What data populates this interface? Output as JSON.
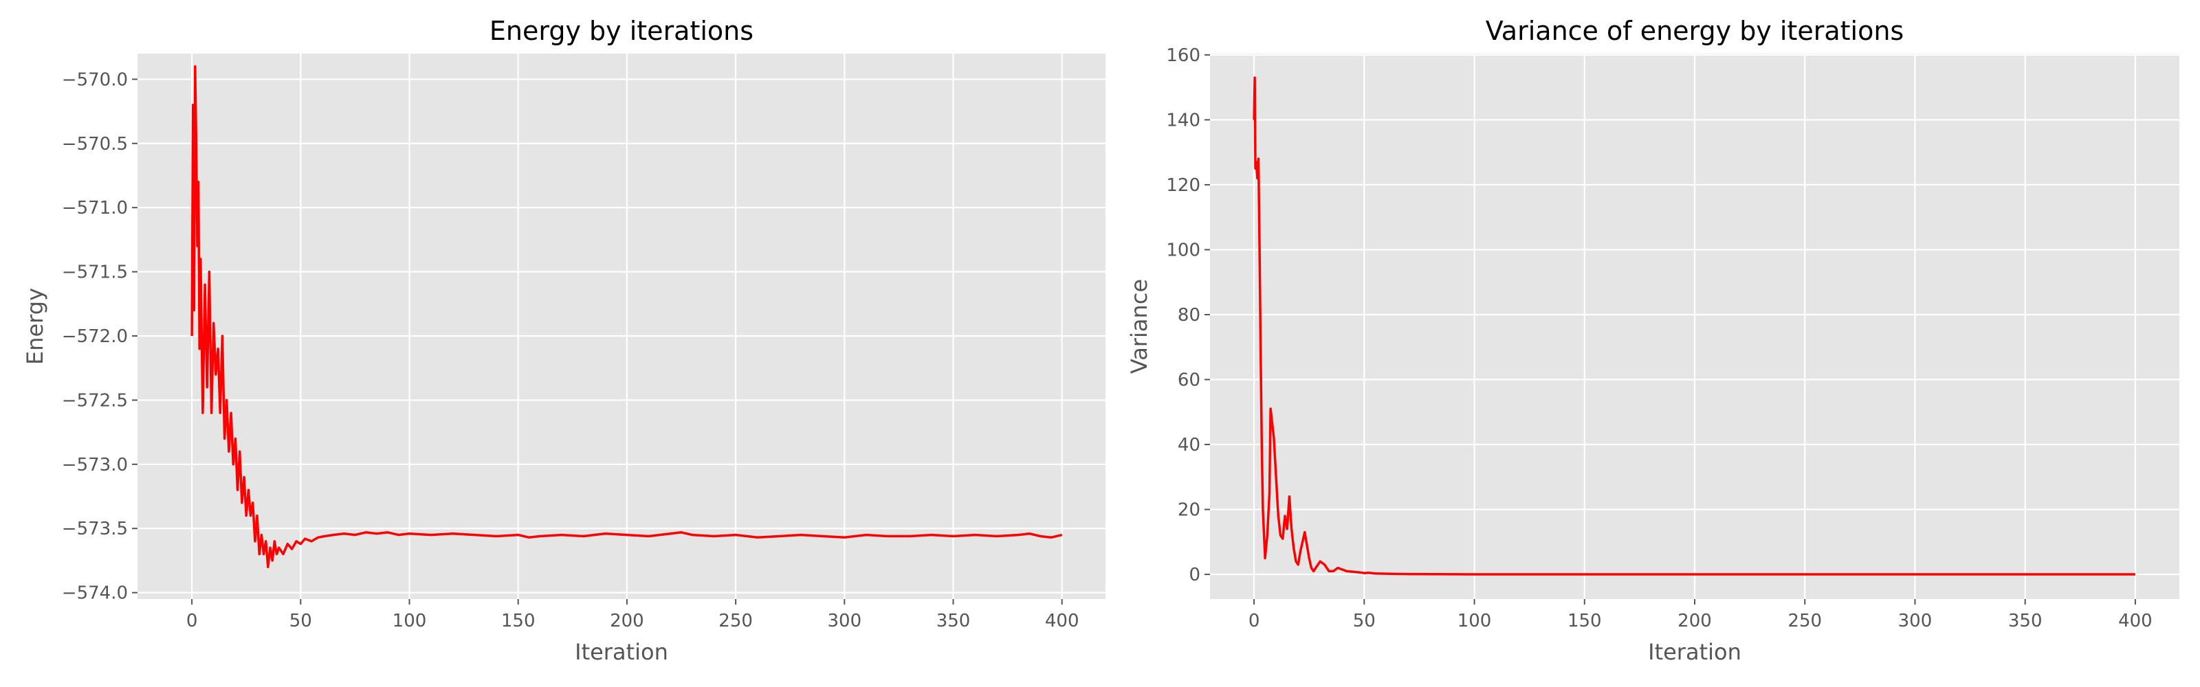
{
  "style": {
    "figure_bg": "#ffffff",
    "axes_bg": "#e5e5e5",
    "grid_color": "#ffffff",
    "tick_color": "#555555",
    "line_color": "#ff0000"
  },
  "chart_data": [
    {
      "type": "line",
      "title": "Energy by iterations",
      "xlabel": "Iteration",
      "ylabel": "Energy",
      "xlim": [
        -25,
        420
      ],
      "ylim": [
        -574.05,
        -569.8
      ],
      "xticks": [
        0,
        50,
        100,
        150,
        200,
        250,
        300,
        350,
        400
      ],
      "yticks": [
        -574.0,
        -573.5,
        -573.0,
        -572.5,
        -572.0,
        -571.5,
        -571.0,
        -570.5,
        -570.0
      ],
      "xtick_labels": [
        "0",
        "50",
        "100",
        "150",
        "200",
        "250",
        "300",
        "350",
        "400"
      ],
      "ytick_labels": [
        "−574.0",
        "−573.5",
        "−573.0",
        "−572.5",
        "−572.0",
        "−571.5",
        "−571.0",
        "−570.5",
        "−570.0"
      ],
      "grid": true,
      "series": [
        {
          "color": "#ff0000",
          "x": [
            0,
            0.5,
            1,
            1.5,
            2,
            2.5,
            3,
            3.5,
            4,
            5,
            6,
            7,
            8,
            9,
            10,
            11,
            12,
            13,
            14,
            15,
            16,
            17,
            18,
            19,
            20,
            21,
            22,
            23,
            24,
            25,
            26,
            27,
            28,
            29,
            30,
            31,
            32,
            33,
            34,
            35,
            36,
            37,
            38,
            39,
            40,
            42,
            44,
            46,
            48,
            50,
            52,
            55,
            58,
            61,
            65,
            70,
            75,
            80,
            85,
            90,
            95,
            100,
            110,
            120,
            130,
            140,
            150,
            155,
            160,
            170,
            180,
            190,
            200,
            210,
            220,
            225,
            230,
            240,
            250,
            260,
            270,
            280,
            290,
            300,
            310,
            320,
            330,
            340,
            350,
            360,
            370,
            380,
            385,
            390,
            395,
            400
          ],
          "y": [
            -572.0,
            -570.2,
            -571.8,
            -569.9,
            -570.5,
            -571.3,
            -570.8,
            -572.1,
            -571.4,
            -572.6,
            -571.6,
            -572.4,
            -571.5,
            -572.6,
            -571.9,
            -572.3,
            -572.1,
            -572.6,
            -572.0,
            -572.8,
            -572.5,
            -572.9,
            -572.6,
            -573.0,
            -572.8,
            -573.2,
            -572.9,
            -573.3,
            -573.1,
            -573.4,
            -573.2,
            -573.4,
            -573.3,
            -573.6,
            -573.4,
            -573.7,
            -573.55,
            -573.7,
            -573.6,
            -573.8,
            -573.65,
            -573.75,
            -573.6,
            -573.7,
            -573.65,
            -573.7,
            -573.62,
            -573.66,
            -573.6,
            -573.62,
            -573.58,
            -573.6,
            -573.57,
            -573.56,
            -573.55,
            -573.54,
            -573.55,
            -573.53,
            -573.54,
            -573.53,
            -573.55,
            -573.54,
            -573.55,
            -573.54,
            -573.55,
            -573.56,
            -573.55,
            -573.57,
            -573.56,
            -573.55,
            -573.56,
            -573.54,
            -573.55,
            -573.56,
            -573.54,
            -573.53,
            -573.55,
            -573.56,
            -573.55,
            -573.57,
            -573.56,
            -573.55,
            -573.56,
            -573.57,
            -573.55,
            -573.56,
            -573.56,
            -573.55,
            -573.56,
            -573.55,
            -573.56,
            -573.55,
            -573.54,
            -573.56,
            -573.57,
            -573.55
          ]
        }
      ]
    },
    {
      "type": "line",
      "title": "Variance of energy by iterations",
      "xlabel": "Iteration",
      "ylabel": "Variance",
      "xlim": [
        -20,
        420
      ],
      "ylim": [
        -7.6,
        160.4
      ],
      "xticks": [
        0,
        50,
        100,
        150,
        200,
        250,
        300,
        350,
        400
      ],
      "yticks": [
        0,
        20,
        40,
        60,
        80,
        100,
        120,
        140,
        160
      ],
      "xtick_labels": [
        "0",
        "50",
        "100",
        "150",
        "200",
        "250",
        "300",
        "350",
        "400"
      ],
      "ytick_labels": [
        "0",
        "20",
        "40",
        "60",
        "80",
        "100",
        "120",
        "140",
        "160"
      ],
      "grid": true,
      "series": [
        {
          "color": "#ff0000",
          "x": [
            0,
            0.3,
            0.6,
            1,
            1.5,
            2,
            2.5,
            3,
            3.5,
            4,
            5,
            6,
            7,
            7.5,
            8,
            9,
            10,
            11,
            12,
            13,
            14,
            15,
            16,
            17,
            18,
            19,
            20,
            21,
            22,
            23,
            24,
            25,
            26,
            27,
            28,
            29,
            30,
            32,
            34,
            36,
            38,
            40,
            42,
            45,
            48,
            50,
            52,
            55,
            60,
            65,
            70,
            80,
            100,
            150,
            200,
            250,
            300,
            350,
            400
          ],
          "y": [
            140,
            153,
            125,
            127,
            122,
            128,
            100,
            68,
            40,
            20,
            5,
            12,
            25,
            51,
            48,
            42,
            30,
            18,
            12,
            11,
            18,
            14,
            24,
            14,
            8,
            4,
            3,
            7,
            10,
            13,
            9,
            5,
            2,
            1,
            2,
            3,
            4,
            3,
            1,
            1,
            2,
            1.5,
            1,
            0.8,
            0.6,
            0.4,
            0.5,
            0.3,
            0.2,
            0.15,
            0.1,
            0.05,
            0.02,
            0.01,
            0.01,
            0.01,
            0.01,
            0.01,
            0.01
          ]
        }
      ]
    }
  ]
}
